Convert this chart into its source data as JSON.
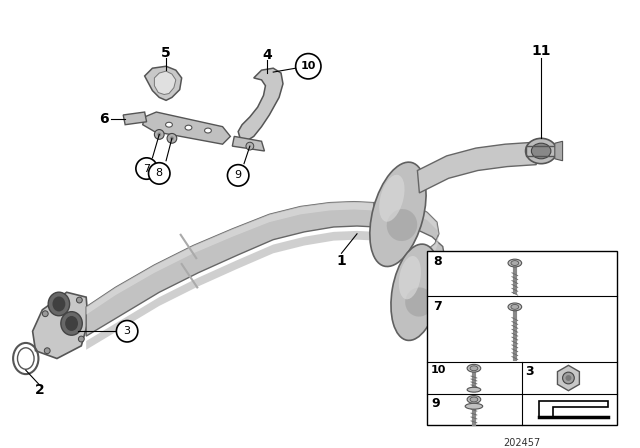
{
  "background_color": "#ffffff",
  "diagram_number": "202457",
  "gray_pipe": "#b8b8b8",
  "gray_dark": "#888888",
  "gray_light": "#d5d5d5",
  "gray_shadow": "#707070",
  "gray_bracket": "#c0c0c0"
}
